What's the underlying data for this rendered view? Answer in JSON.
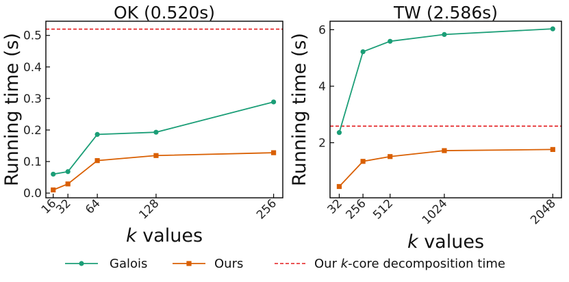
{
  "colors": {
    "galois": "#1b9e77",
    "ours": "#d95f02",
    "kcore": "#e31a1c"
  },
  "legend": {
    "galois": "Galois",
    "ours": "Ours",
    "kcore_prefix": "Our ",
    "kcore_k": "k",
    "kcore_suffix": "-core decomposition time"
  },
  "chart_data": [
    {
      "type": "line",
      "title": "OK (0.520s)",
      "xlabel_k": "k",
      "xlabel_rest": " values",
      "ylabel": "Running time (s)",
      "x": [
        16,
        32,
        64,
        128,
        256
      ],
      "x_tick_labels": [
        "16",
        "32",
        "64",
        "128",
        "256"
      ],
      "xlim": [
        8,
        266
      ],
      "ylim": [
        -0.015,
        0.545
      ],
      "y_ticks": [
        0.0,
        0.1,
        0.2,
        0.3,
        0.4,
        0.5
      ],
      "y_tick_labels": [
        "0.0",
        "0.1",
        "0.2",
        "0.3",
        "0.4",
        "0.5"
      ],
      "series": [
        {
          "name": "Galois",
          "marker": "circle",
          "values": [
            0.06,
            0.068,
            0.186,
            0.193,
            0.289
          ]
        },
        {
          "name": "Ours",
          "marker": "square",
          "values": [
            0.01,
            0.029,
            0.103,
            0.119,
            0.128
          ]
        }
      ],
      "hline": {
        "name": "Our k-core decomposition time",
        "value": 0.52
      }
    },
    {
      "type": "line",
      "title": "TW (2.586s)",
      "xlabel_k": "k",
      "xlabel_rest": " values",
      "ylabel": "Running time (s)",
      "x": [
        32,
        256,
        512,
        1024,
        2048
      ],
      "x_tick_labels": [
        "32",
        "256",
        "512",
        "1024",
        "2048"
      ],
      "xlim": [
        -55,
        2130
      ],
      "ylim": [
        0.05,
        6.3
      ],
      "y_ticks": [
        2,
        4,
        6
      ],
      "y_tick_labels": [
        "2",
        "4",
        "6"
      ],
      "series": [
        {
          "name": "Galois",
          "marker": "circle",
          "values": [
            2.36,
            5.22,
            5.59,
            5.83,
            6.03
          ]
        },
        {
          "name": "Ours",
          "marker": "square",
          "values": [
            0.45,
            1.34,
            1.51,
            1.72,
            1.76
          ]
        }
      ],
      "hline": {
        "name": "Our k-core decomposition time",
        "value": 2.586
      }
    }
  ]
}
